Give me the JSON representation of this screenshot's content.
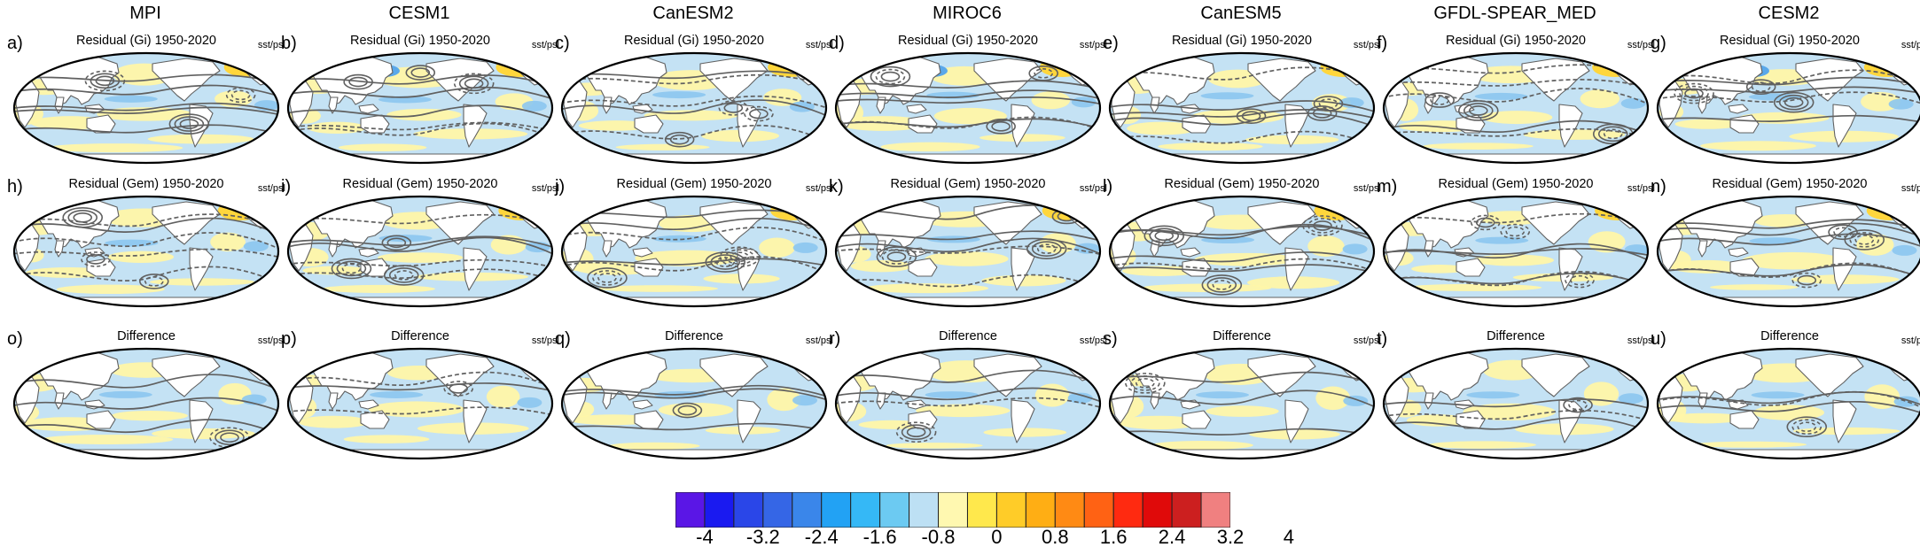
{
  "models": [
    "MPI",
    "CESM1",
    "CanESM2",
    "MIROC6",
    "CanESM5",
    "GFDL-SPEAR_MED",
    "CESM2"
  ],
  "rows": [
    {
      "title": "Residual (Gi) 1950-2020",
      "labels": [
        "a)",
        "b)",
        "c)",
        "d)",
        "e)",
        "f)",
        "g)"
      ],
      "varname": "sst/psl"
    },
    {
      "title": "Residual (Gem) 1950-2020",
      "labels": [
        "h)",
        "i)",
        "j)",
        "k)",
        "l)",
        "m)",
        "n)"
      ],
      "varname": "sst/psl"
    },
    {
      "title": "Difference",
      "labels": [
        "o)",
        "p)",
        "q)",
        "r)",
        "s)",
        "t)",
        "u)"
      ],
      "varname": "sst/psl"
    }
  ],
  "colorbar": {
    "ticks": [
      "-4",
      "-3.2",
      "-2.4",
      "-1.6",
      "-0.8",
      "0",
      "0.8",
      "1.6",
      "2.4",
      "3.2",
      "4"
    ],
    "colors": [
      "#5a16e6",
      "#1a1af0",
      "#2a46e8",
      "#3566e6",
      "#3a86ea",
      "#22a2f4",
      "#35b8f6",
      "#6ccaf2",
      "#bde0f4",
      "#fff8b0",
      "#ffe84c",
      "#ffcc28",
      "#ffae14",
      "#ff8a14",
      "#ff6214",
      "#ff2a10",
      "#e00a0a",
      "#cc1f1f",
      "#f08080"
    ]
  },
  "palette": {
    "ocean_base": "#c4e2f4",
    "warm_light": "#fff5a8",
    "warm_mid": "#ffd63c",
    "warm_strong": "#ff9a1a",
    "hot": "#ff3a10",
    "cool_strong": "#8cc6f0",
    "cool_deep": "#5aa8ea",
    "land": "#ffffff",
    "contour": "#606060"
  }
}
